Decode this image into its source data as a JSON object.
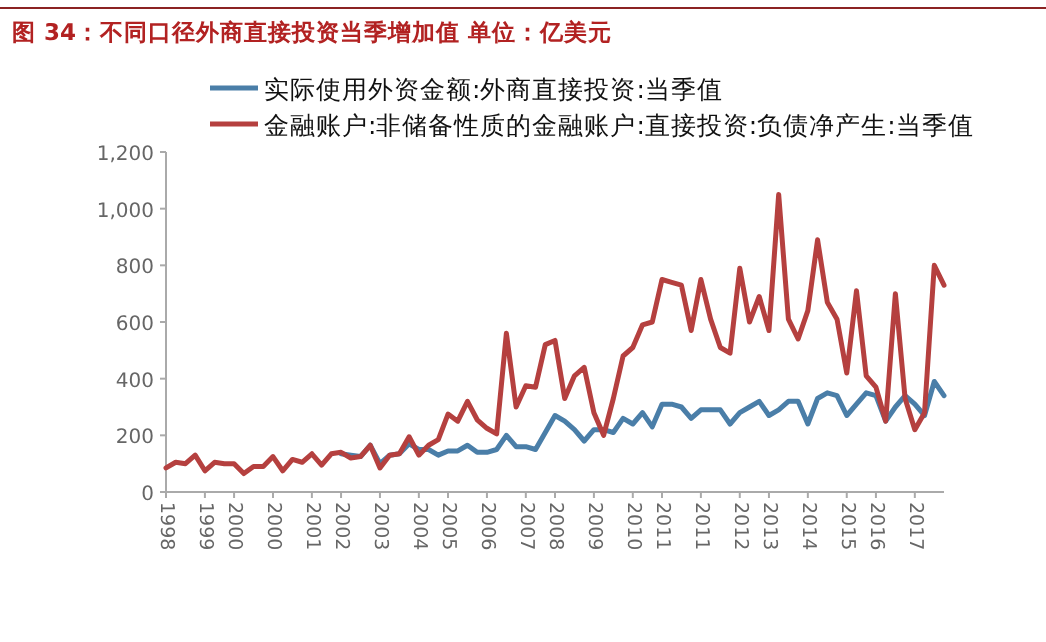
{
  "chart_data": {
    "type": "line",
    "title": "图 34：不同口径外商直接投资当季增加值  单位：亿美元",
    "categories": [
      "1998",
      null,
      null,
      null,
      "1999",
      null,
      null,
      "2000",
      null,
      null,
      null,
      "2000",
      null,
      null,
      null,
      "2001",
      null,
      null,
      "2002",
      null,
      null,
      null,
      "2003",
      null,
      null,
      null,
      "2004",
      null,
      null,
      "2005",
      null,
      null,
      null,
      "2006",
      null,
      null,
      null,
      "2007",
      null,
      null,
      "2008",
      null,
      null,
      null,
      "2009",
      null,
      null,
      null,
      "2010",
      null,
      null,
      "2011",
      null,
      null,
      null,
      "2011",
      null,
      null,
      null,
      "2012",
      null,
      null,
      "2013",
      null,
      null,
      null,
      "2014",
      null,
      null,
      null,
      "2015",
      null,
      null,
      "2016",
      null,
      null,
      null,
      "2017",
      null,
      null,
      null
    ],
    "series": [
      {
        "name": "实际使用外资金额:外商直接投资:当季值",
        "color": "#4a7ea8",
        "values": [
          null,
          null,
          null,
          null,
          null,
          null,
          null,
          null,
          null,
          null,
          null,
          null,
          null,
          null,
          null,
          null,
          null,
          null,
          135,
          130,
          125,
          165,
          100,
          130,
          135,
          170,
          150,
          150,
          130,
          145,
          145,
          165,
          140,
          140,
          150,
          200,
          160,
          160,
          150,
          210,
          270,
          250,
          220,
          180,
          220,
          220,
          210,
          260,
          240,
          280,
          230,
          310,
          310,
          300,
          260,
          290,
          290,
          290,
          240,
          280,
          300,
          320,
          270,
          290,
          320,
          320,
          240,
          330,
          350,
          340,
          270,
          310,
          350,
          340,
          250,
          300,
          340,
          310,
          270,
          390,
          340
        ]
      },
      {
        "name": "金融账户:非储备性质的金融账户:直接投资:负债净产生:当季值",
        "color": "#b5403f",
        "values": [
          85,
          105,
          100,
          130,
          75,
          105,
          100,
          100,
          65,
          90,
          90,
          125,
          75,
          115,
          105,
          135,
          95,
          135,
          140,
          120,
          125,
          165,
          85,
          130,
          135,
          195,
          130,
          165,
          185,
          275,
          250,
          320,
          255,
          225,
          205,
          560,
          300,
          375,
          370,
          520,
          535,
          330,
          410,
          440,
          280,
          200,
          330,
          480,
          510,
          590,
          600,
          750,
          740,
          730,
          570,
          750,
          610,
          510,
          490,
          790,
          600,
          690,
          570,
          1050,
          610,
          540,
          640,
          890,
          670,
          610,
          420,
          710,
          410,
          370,
          250,
          700,
          330,
          220,
          280,
          800,
          730
        ]
      }
    ],
    "ylim": [
      0,
      1200
    ],
    "yticks": [
      0,
      200,
      400,
      600,
      800,
      {
        "value": 1000,
        "label": "1,000"
      },
      {
        "value": 1200,
        "label": "1,200"
      }
    ],
    "legend": "top",
    "grid": false,
    "marker": "none",
    "line_style": "solid"
  }
}
